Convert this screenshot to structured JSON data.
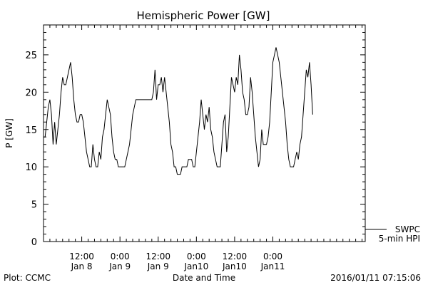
{
  "chart_data": {
    "type": "line",
    "title": "Hemispheric Power [GW]",
    "ylabel": "P [GW]",
    "xlabel": "Date and Time",
    "ylim": [
      0,
      29
    ],
    "xlim_hours": [
      0,
      101
    ],
    "yticks": [
      0,
      5,
      10,
      15,
      20,
      25
    ],
    "xticks": [
      {
        "label1": "12:00",
        "label2": "Jan 8",
        "hour": 12
      },
      {
        "label1": "0:00",
        "label2": "Jan 9",
        "hour": 24
      },
      {
        "label1": "12:00",
        "label2": "Jan 9",
        "hour": 36
      },
      {
        "label1": "0:00",
        "label2": "Jan10",
        "hour": 48
      },
      {
        "label1": "12:00",
        "label2": "Jan10",
        "hour": 60
      },
      {
        "label1": "0:00",
        "label2": "Jan11",
        "hour": 72
      }
    ],
    "grid": false,
    "legend": {
      "position": "bottom-right",
      "entries": [
        "SWPC",
        "5-min HPI"
      ]
    },
    "footer_left": "Plot: CCMC",
    "footer_right": "2016/01/11 07:15:06",
    "series": [
      {
        "name": "SWPC",
        "color": "#000000",
        "points": [
          [
            0.0,
            14
          ],
          [
            0.5,
            14
          ],
          [
            1.0,
            16
          ],
          [
            1.5,
            18
          ],
          [
            2.0,
            19
          ],
          [
            2.5,
            17
          ],
          [
            3.0,
            13
          ],
          [
            3.5,
            16
          ],
          [
            4.0,
            13
          ],
          [
            4.5,
            15
          ],
          [
            5.0,
            17
          ],
          [
            5.5,
            20
          ],
          [
            6.0,
            22
          ],
          [
            6.5,
            21
          ],
          [
            7.0,
            21
          ],
          [
            7.5,
            22
          ],
          [
            8.0,
            23
          ],
          [
            8.5,
            24
          ],
          [
            9.0,
            22
          ],
          [
            9.5,
            19
          ],
          [
            10.0,
            17
          ],
          [
            10.5,
            16
          ],
          [
            11.0,
            16
          ],
          [
            11.5,
            17
          ],
          [
            12.0,
            17
          ],
          [
            12.5,
            16
          ],
          [
            13.0,
            14
          ],
          [
            13.5,
            12
          ],
          [
            14.0,
            11
          ],
          [
            14.5,
            10
          ],
          [
            15.0,
            10
          ],
          [
            15.5,
            13
          ],
          [
            16.0,
            11
          ],
          [
            16.5,
            10
          ],
          [
            17.0,
            10
          ],
          [
            17.5,
            12
          ],
          [
            18.0,
            11
          ],
          [
            18.5,
            14
          ],
          [
            19.0,
            15
          ],
          [
            19.5,
            17
          ],
          [
            20.0,
            19
          ],
          [
            20.5,
            18
          ],
          [
            21.0,
            17
          ],
          [
            21.5,
            14
          ],
          [
            22.0,
            12
          ],
          [
            22.5,
            11
          ],
          [
            23.0,
            11
          ],
          [
            23.5,
            10
          ],
          [
            24.0,
            10
          ],
          [
            24.5,
            10
          ],
          [
            25.0,
            10
          ],
          [
            25.5,
            10
          ],
          [
            26.0,
            11
          ],
          [
            26.5,
            12
          ],
          [
            27.0,
            13
          ],
          [
            27.5,
            15
          ],
          [
            28.0,
            17
          ],
          [
            28.5,
            18
          ],
          [
            29.0,
            19
          ],
          [
            29.5,
            19
          ],
          [
            30.0,
            19
          ],
          [
            30.5,
            19
          ],
          [
            31.0,
            19
          ],
          [
            31.5,
            19
          ],
          [
            32.0,
            19
          ],
          [
            32.5,
            19
          ],
          [
            33.0,
            19
          ],
          [
            33.5,
            19
          ],
          [
            34.0,
            19
          ],
          [
            34.5,
            20
          ],
          [
            35.0,
            23
          ],
          [
            35.5,
            19
          ],
          [
            36.0,
            21
          ],
          [
            36.5,
            21
          ],
          [
            37.0,
            22
          ],
          [
            37.5,
            20
          ],
          [
            38.0,
            22
          ],
          [
            38.5,
            20
          ],
          [
            39.0,
            18
          ],
          [
            39.5,
            16
          ],
          [
            40.0,
            13
          ],
          [
            40.5,
            12
          ],
          [
            41.0,
            10
          ],
          [
            41.5,
            10
          ],
          [
            42.0,
            9
          ],
          [
            42.5,
            9
          ],
          [
            43.0,
            9
          ],
          [
            43.5,
            10
          ],
          [
            44.0,
            10
          ],
          [
            44.5,
            10
          ],
          [
            45.0,
            10
          ],
          [
            45.5,
            11
          ],
          [
            46.0,
            11
          ],
          [
            46.5,
            11
          ],
          [
            47.0,
            10
          ],
          [
            47.5,
            10
          ],
          [
            48.0,
            12
          ],
          [
            48.5,
            14
          ],
          [
            49.0,
            16
          ],
          [
            49.5,
            19
          ],
          [
            50.0,
            17
          ],
          [
            50.5,
            15
          ],
          [
            51.0,
            17
          ],
          [
            51.5,
            16
          ],
          [
            52.0,
            18
          ],
          [
            52.5,
            15
          ],
          [
            53.0,
            14
          ],
          [
            53.5,
            12
          ],
          [
            54.0,
            11
          ],
          [
            54.5,
            10
          ],
          [
            55.0,
            10
          ],
          [
            55.5,
            10
          ],
          [
            56.0,
            13
          ],
          [
            56.5,
            16
          ],
          [
            57.0,
            17
          ],
          [
            57.5,
            12
          ],
          [
            58.0,
            14
          ],
          [
            58.5,
            18
          ],
          [
            59.0,
            22
          ],
          [
            59.5,
            21
          ],
          [
            60.0,
            20
          ],
          [
            60.5,
            22
          ],
          [
            61.0,
            21
          ],
          [
            61.5,
            25
          ],
          [
            62.0,
            23
          ],
          [
            62.5,
            20
          ],
          [
            63.0,
            19
          ],
          [
            63.5,
            17
          ],
          [
            64.0,
            17
          ],
          [
            64.5,
            18
          ],
          [
            65.0,
            22
          ],
          [
            65.5,
            20
          ],
          [
            66.0,
            17
          ],
          [
            66.5,
            14
          ],
          [
            67.0,
            12
          ],
          [
            67.5,
            10
          ],
          [
            68.0,
            11
          ],
          [
            68.5,
            15
          ],
          [
            69.0,
            13
          ],
          [
            69.5,
            13
          ],
          [
            70.0,
            13
          ],
          [
            70.5,
            14
          ],
          [
            71.0,
            16
          ],
          [
            71.5,
            20
          ],
          [
            72.0,
            24
          ],
          [
            72.5,
            25
          ],
          [
            73.0,
            26
          ],
          [
            73.5,
            25
          ],
          [
            74.0,
            24
          ],
          [
            74.5,
            22
          ],
          [
            75.0,
            20
          ],
          [
            75.5,
            18
          ],
          [
            76.0,
            16
          ],
          [
            76.5,
            13
          ],
          [
            77.0,
            11
          ],
          [
            77.5,
            10
          ],
          [
            78.0,
            10
          ],
          [
            78.5,
            10
          ],
          [
            79.0,
            11
          ],
          [
            79.5,
            12
          ],
          [
            80.0,
            11
          ],
          [
            80.5,
            13
          ],
          [
            81.0,
            14
          ],
          [
            81.5,
            17
          ],
          [
            82.0,
            20
          ],
          [
            82.5,
            23
          ],
          [
            83.0,
            22
          ],
          [
            83.5,
            24
          ],
          [
            84.0,
            21
          ],
          [
            84.5,
            17
          ]
        ]
      }
    ]
  }
}
